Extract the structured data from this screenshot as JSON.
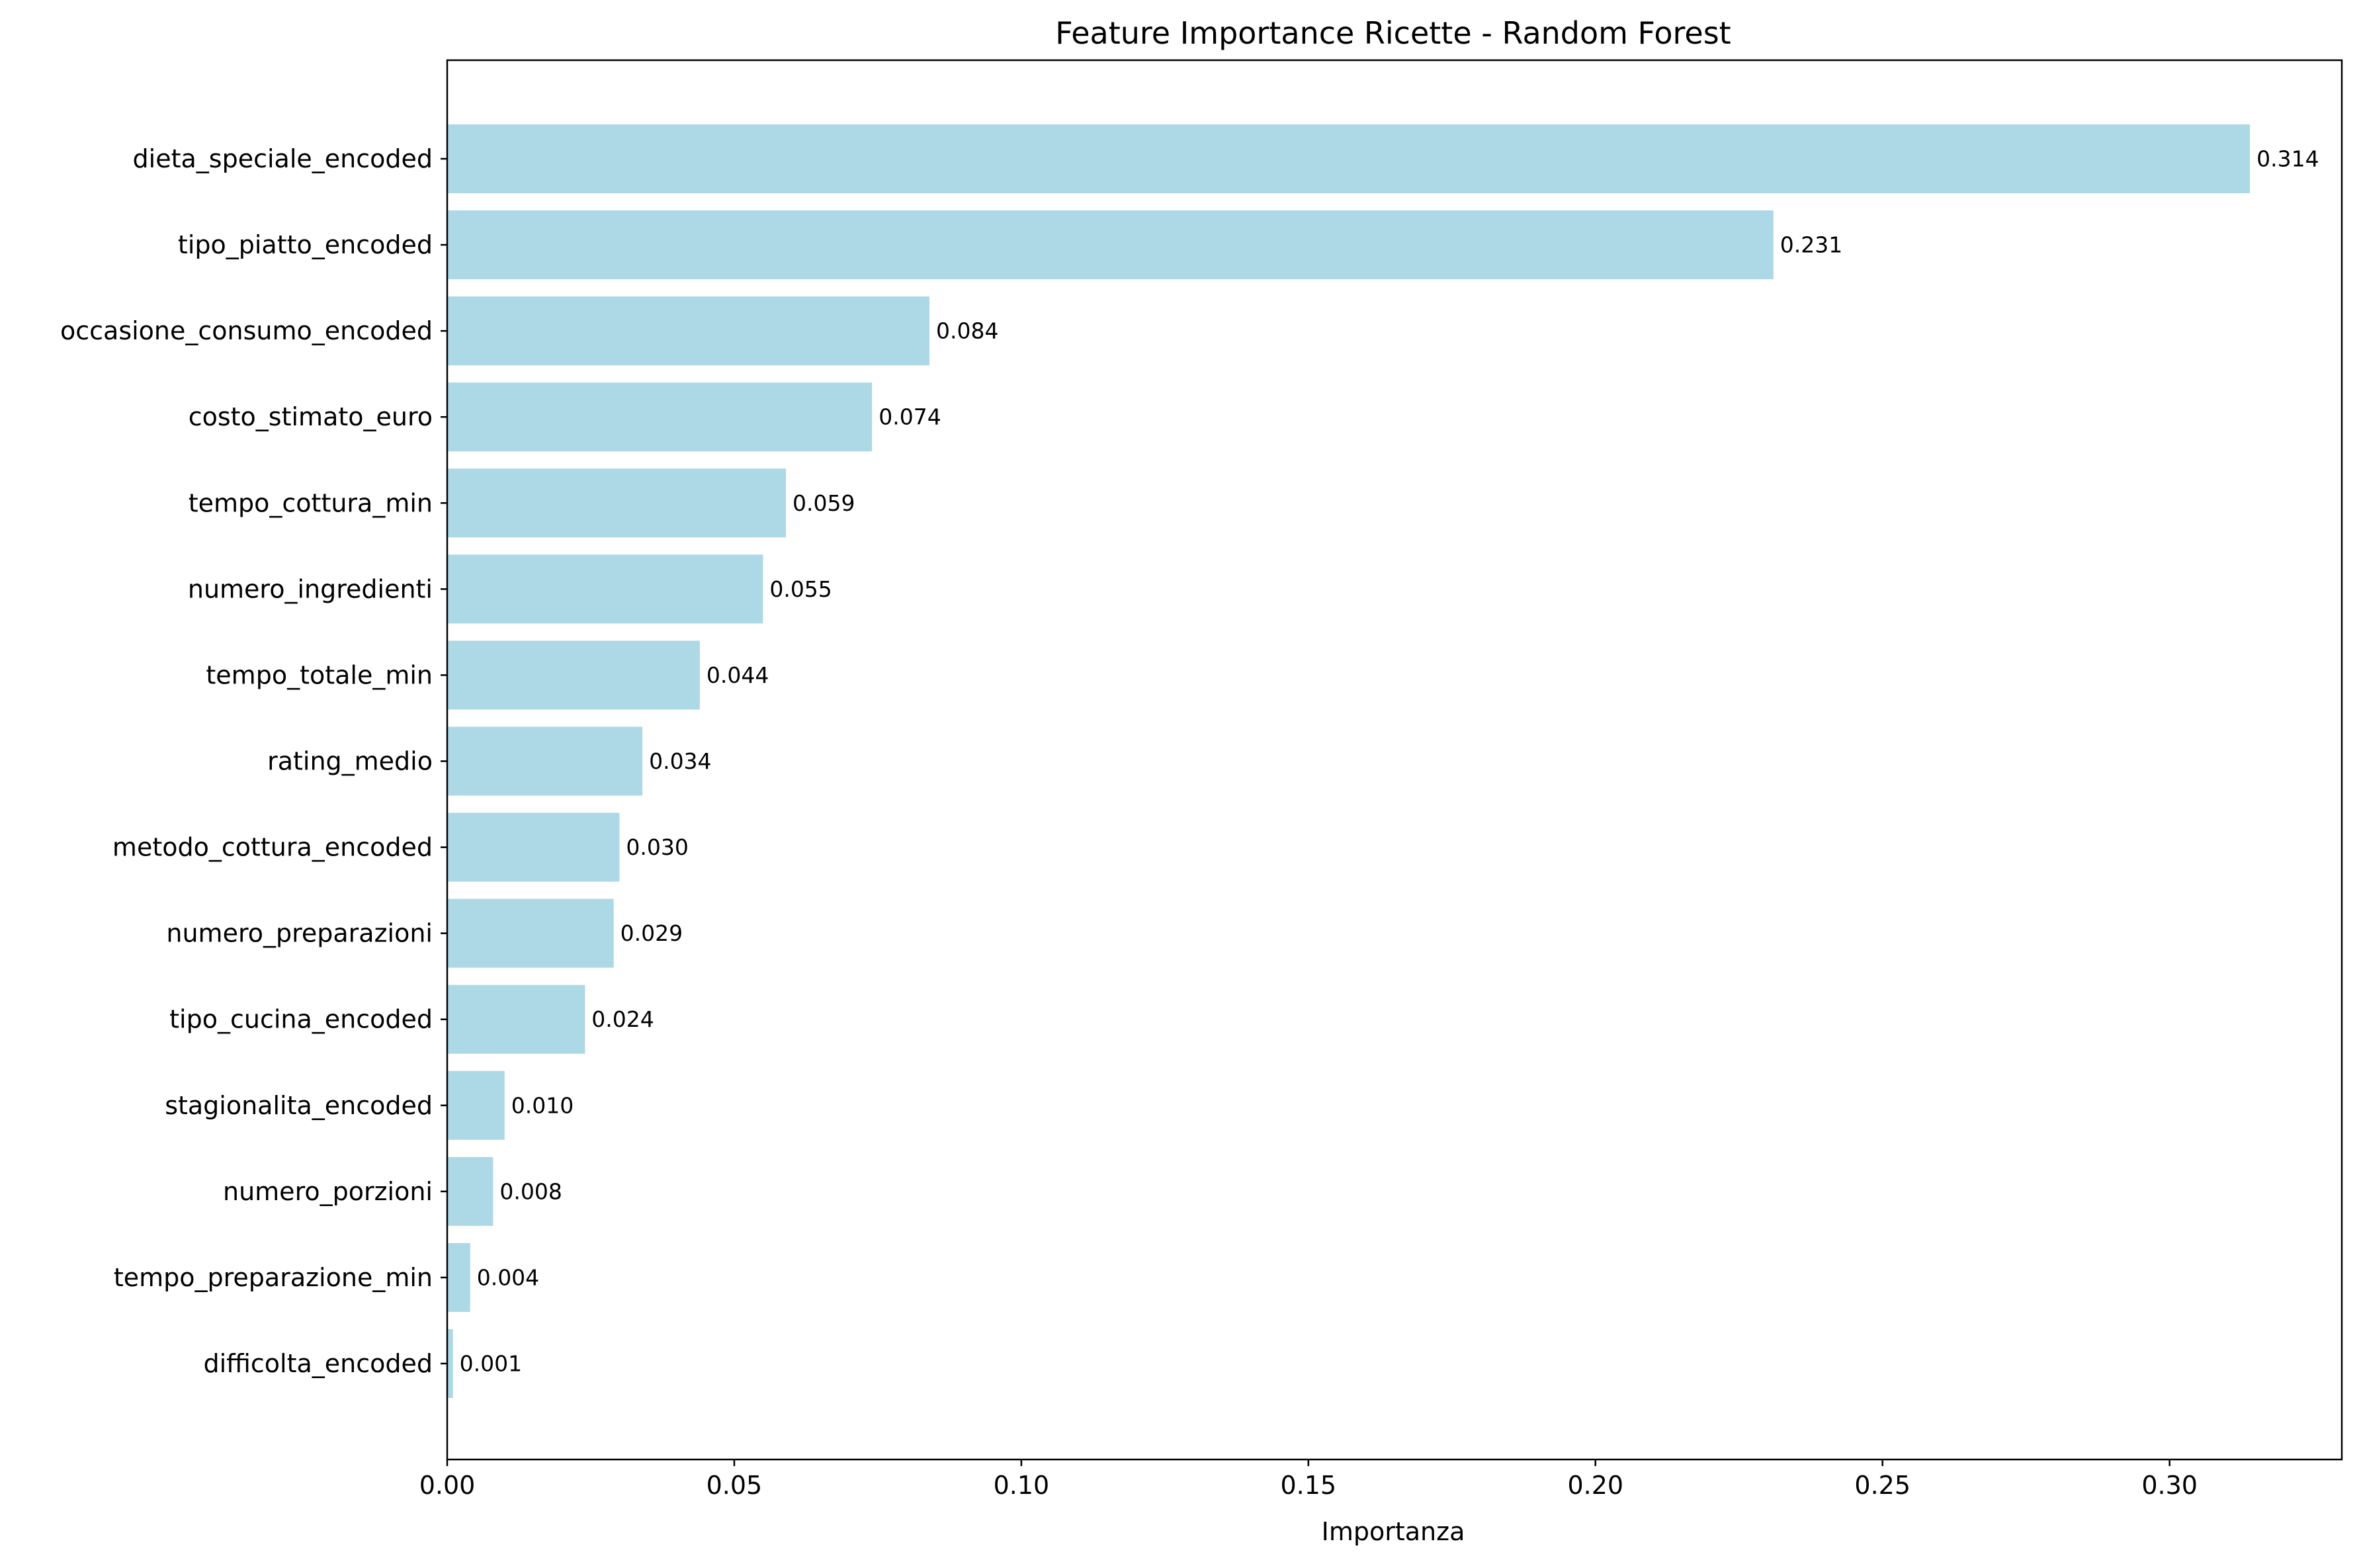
{
  "chart_data": {
    "type": "bar",
    "orientation": "horizontal",
    "title": "Feature Importance Ricette - Random Forest",
    "xlabel": "Importanza",
    "ylabel": "",
    "xlim": [
      0,
      0.33
    ],
    "xticks": [
      "0.00",
      "0.05",
      "0.10",
      "0.15",
      "0.20",
      "0.25",
      "0.30"
    ],
    "grid": false,
    "bar_color": "#add8e6",
    "categories": [
      "dieta_speciale_encoded",
      "tipo_piatto_encoded",
      "occasione_consumo_encoded",
      "costo_stimato_euro",
      "tempo_cottura_min",
      "numero_ingredienti",
      "tempo_totale_min",
      "rating_medio",
      "metodo_cottura_encoded",
      "numero_preparazioni",
      "tipo_cucina_encoded",
      "stagionalita_encoded",
      "numero_porzioni",
      "tempo_preparazione_min",
      "difficolta_encoded"
    ],
    "values": [
      0.314,
      0.231,
      0.084,
      0.074,
      0.059,
      0.055,
      0.044,
      0.034,
      0.03,
      0.029,
      0.024,
      0.01,
      0.008,
      0.004,
      0.001
    ],
    "value_labels": [
      "0.314",
      "0.231",
      "0.084",
      "0.074",
      "0.059",
      "0.055",
      "0.044",
      "0.034",
      "0.030",
      "0.029",
      "0.024",
      "0.010",
      "0.008",
      "0.004",
      "0.001"
    ]
  }
}
